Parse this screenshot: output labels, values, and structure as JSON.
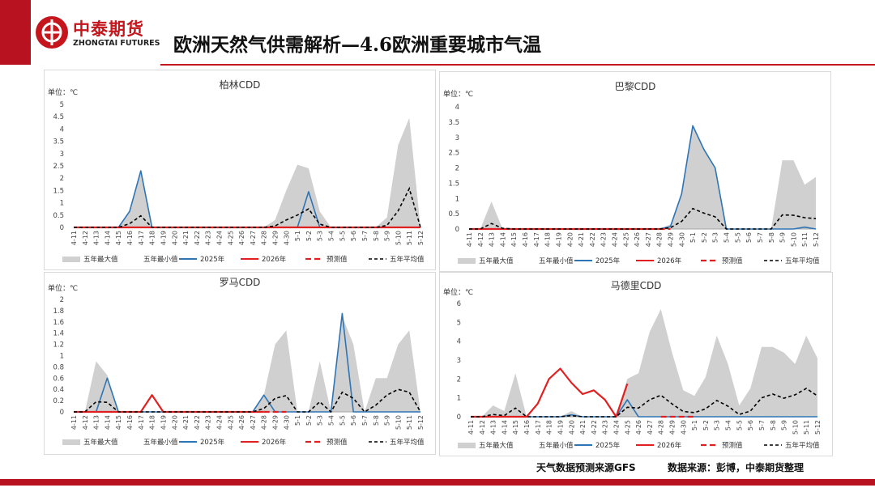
{
  "header": {
    "logo_cn": "中泰期货",
    "logo_en": "ZHONGTAI FUTURES",
    "title": "欧洲天然气供需解析—4.6欧洲重要城市气温"
  },
  "footer": {
    "weather_source": "天气数据预测来源GFS",
    "data_source": "数据来源：彭博，中泰期货整理"
  },
  "colors": {
    "brand_red": "#c4161c",
    "max_fill": "#d0d0d0",
    "y2025": "#2e75b6",
    "y2026": "#e02020",
    "forecast": "#e02020",
    "avg": "#000000"
  },
  "chart_data": [
    {
      "id": "berlin",
      "type": "area",
      "title": "柏林CDD",
      "unit_label": "单位：℃",
      "ylim": [
        0,
        5
      ],
      "yticks": [
        "0",
        "0.5",
        "1",
        "1.5",
        "2",
        "2.5",
        "3",
        "3.5",
        "4",
        "4.5",
        "5"
      ],
      "categories": [
        "4-11",
        "4-12",
        "4-13",
        "4-14",
        "4-15",
        "4-16",
        "4-17",
        "4-18",
        "4-19",
        "4-20",
        "4-21",
        "4-22",
        "4-23",
        "4-24",
        "4-25",
        "4-26",
        "4-27",
        "4-28",
        "4-29",
        "4-30",
        "5-1",
        "5-2",
        "5-3",
        "5-4",
        "5-5",
        "5-6",
        "5-7",
        "5-8",
        "5-9",
        "5-10",
        "5-11",
        "5-12"
      ],
      "legend": [
        "五年最大值",
        "五年最小值",
        "2025年",
        "2026年",
        "预测值",
        "五年平均值"
      ],
      "series": [
        {
          "name": "五年最大值",
          "style": "area",
          "values": [
            0,
            0,
            0,
            0,
            0,
            0.7,
            2.3,
            0,
            0,
            0,
            0,
            0,
            0,
            0,
            0,
            0,
            0,
            0,
            0.3,
            1.5,
            2.55,
            2.4,
            0.65,
            0,
            0,
            0,
            0,
            0,
            0.4,
            3.35,
            4.45,
            0
          ]
        },
        {
          "name": "五年最小值",
          "style": "line",
          "values": [
            0,
            0,
            0,
            0,
            0,
            0,
            0,
            0,
            0,
            0,
            0,
            0,
            0,
            0,
            0,
            0,
            0,
            0,
            0,
            0,
            0,
            0,
            0,
            0,
            0,
            0,
            0,
            0,
            0,
            0,
            0,
            0
          ]
        },
        {
          "name": "2025年",
          "style": "line",
          "values": [
            0,
            0,
            0,
            0,
            0,
            0.65,
            2.3,
            0,
            0,
            0,
            0,
            0,
            0,
            0,
            0,
            0,
            0,
            0,
            0,
            0,
            0,
            1.45,
            0,
            0,
            0,
            0,
            0,
            0,
            0,
            0,
            0,
            0
          ]
        },
        {
          "name": "2026年",
          "style": "line",
          "values": [
            0,
            0,
            0,
            0,
            0,
            0,
            0,
            0,
            0,
            0,
            0,
            0,
            0,
            0,
            0,
            0,
            0,
            0,
            0,
            0,
            0,
            0,
            0,
            0,
            0,
            0,
            0,
            0,
            0,
            0,
            0,
            0
          ]
        },
        {
          "name": "五年平均值",
          "style": "dash",
          "values": [
            0,
            0,
            0,
            0,
            0,
            0.15,
            0.47,
            0,
            0,
            0,
            0,
            0,
            0,
            0,
            0,
            0,
            0,
            0,
            0.06,
            0.3,
            0.5,
            0.75,
            0.13,
            0,
            0,
            0,
            0,
            0,
            0.08,
            0.67,
            1.58,
            0
          ]
        }
      ]
    },
    {
      "id": "paris",
      "type": "area",
      "title": "巴黎CDD",
      "unit_label": "单位：℃",
      "ylim": [
        0,
        4
      ],
      "yticks": [
        "0",
        "0.5",
        "1",
        "1.5",
        "2",
        "2.5",
        "3",
        "3.5",
        "4"
      ],
      "categories": [
        "4-11",
        "4-12",
        "4-13",
        "4-14",
        "4-15",
        "4-16",
        "4-17",
        "4-18",
        "4-19",
        "4-20",
        "4-21",
        "4-22",
        "4-23",
        "4-24",
        "4-25",
        "4-26",
        "4-27",
        "4-28",
        "4-29",
        "4-30",
        "5-1",
        "5-2",
        "5-3",
        "5-4",
        "5-5",
        "5-6",
        "5-7",
        "5-8",
        "5-9",
        "5-10",
        "5-11",
        "5-12"
      ],
      "legend": [
        "五年最大值",
        "五年最小值",
        "2025年",
        "2026年",
        "预测值",
        "五年平均值"
      ],
      "series": [
        {
          "name": "五年最大值",
          "style": "area",
          "values": [
            0,
            0,
            0.9,
            0,
            0,
            0,
            0,
            0,
            0,
            0,
            0,
            0,
            0,
            0,
            0,
            0,
            0,
            0,
            0.15,
            1.2,
            3.35,
            2.6,
            2.0,
            0,
            0,
            0,
            0,
            0,
            2.25,
            2.25,
            1.45,
            1.7
          ]
        },
        {
          "name": "五年最小值",
          "style": "line",
          "values": [
            0,
            0,
            0,
            0,
            0,
            0,
            0,
            0,
            0,
            0,
            0,
            0,
            0,
            0,
            0,
            0,
            0,
            0,
            0,
            0,
            0,
            0,
            0,
            0,
            0,
            0,
            0,
            0,
            0,
            0,
            0,
            0
          ]
        },
        {
          "name": "2025年",
          "style": "line",
          "values": [
            0,
            0,
            0,
            0,
            0,
            0,
            0,
            0,
            0,
            0,
            0,
            0,
            0,
            0,
            0,
            0,
            0,
            0,
            0.08,
            1.15,
            3.38,
            2.6,
            2.0,
            0,
            0,
            0,
            0,
            0,
            0,
            0,
            0.06,
            0
          ]
        },
        {
          "name": "2026年",
          "style": "line",
          "values": [
            0,
            0,
            0,
            0,
            0,
            0,
            0,
            0,
            0,
            0,
            0,
            0,
            0,
            0,
            0,
            0,
            0,
            0,
            null,
            null,
            null,
            null,
            null,
            null,
            null,
            null,
            null,
            null,
            null,
            null,
            null,
            null
          ]
        },
        {
          "name": "预测值",
          "style": "forecast",
          "values": [
            null,
            null,
            null,
            null,
            null,
            null,
            null,
            null,
            null,
            null,
            null,
            null,
            null,
            null,
            null,
            null,
            null,
            0,
            0,
            null,
            null,
            null,
            null,
            null,
            null,
            null,
            null,
            null,
            null,
            null,
            null,
            null
          ]
        },
        {
          "name": "五年平均值",
          "style": "dash",
          "values": [
            0,
            0,
            0.18,
            0.02,
            0,
            0,
            0,
            0,
            0,
            0,
            0,
            0,
            0,
            0,
            0,
            0,
            0,
            0,
            0.04,
            0.25,
            0.67,
            0.52,
            0.4,
            0,
            0,
            0,
            0,
            0,
            0.46,
            0.45,
            0.37,
            0.34
          ]
        }
      ]
    },
    {
      "id": "rome",
      "type": "area",
      "title": "罗马CDD",
      "unit_label": "单位：℃",
      "ylim": [
        0,
        2
      ],
      "yticks": [
        "0",
        "0.2",
        "0.4",
        "0.6",
        "0.8",
        "1",
        "1.2",
        "1.4",
        "1.6",
        "1.8",
        "2"
      ],
      "categories": [
        "4-11",
        "4-12",
        "4-13",
        "4-14",
        "4-15",
        "4-16",
        "4-17",
        "4-18",
        "4-19",
        "4-20",
        "4-21",
        "4-22",
        "4-23",
        "4-24",
        "4-25",
        "4-26",
        "4-27",
        "4-28",
        "4-29",
        "4-30",
        "5-1",
        "5-2",
        "5-3",
        "5-4",
        "5-5",
        "5-6",
        "5-7",
        "5-8",
        "5-9",
        "5-10",
        "5-11",
        "5-12"
      ],
      "legend": [
        "五年最大值",
        "五年最小值",
        "2025年",
        "2026年",
        "预测值",
        "五年平均值"
      ],
      "series": [
        {
          "name": "五年最大值",
          "style": "area",
          "values": [
            0,
            0,
            0.9,
            0.65,
            0,
            0,
            0,
            0,
            0,
            0,
            0,
            0,
            0,
            0,
            0,
            0,
            0,
            0.3,
            1.2,
            1.45,
            0,
            0,
            0.9,
            0,
            1.7,
            1.2,
            0,
            0.6,
            0.6,
            1.2,
            1.45,
            0
          ]
        },
        {
          "name": "五年最小值",
          "style": "line",
          "values": [
            0,
            0,
            0,
            0,
            0,
            0,
            0,
            0,
            0,
            0,
            0,
            0,
            0,
            0,
            0,
            0,
            0,
            0,
            0,
            0,
            0,
            0,
            0,
            0,
            0,
            0,
            0,
            0,
            0,
            0,
            0,
            0
          ]
        },
        {
          "name": "2025年",
          "style": "line",
          "values": [
            0,
            0,
            0,
            0.6,
            0,
            0,
            0,
            0,
            0,
            0,
            0,
            0,
            0,
            0,
            0,
            0,
            0,
            0.3,
            0,
            0,
            0,
            0,
            0,
            0,
            1.75,
            0,
            0,
            0,
            0,
            0,
            0,
            0
          ]
        },
        {
          "name": "2026年",
          "style": "line",
          "values": [
            0,
            0,
            0,
            0,
            0,
            0,
            0,
            0.3,
            0,
            0,
            0,
            0,
            0,
            0,
            0,
            0,
            0,
            0,
            null,
            null,
            null,
            null,
            null,
            null,
            null,
            null,
            null,
            null,
            null,
            null,
            null,
            null
          ]
        },
        {
          "name": "预测值",
          "style": "forecast",
          "values": [
            null,
            null,
            null,
            null,
            null,
            null,
            null,
            null,
            null,
            null,
            null,
            null,
            null,
            null,
            null,
            null,
            null,
            0,
            0,
            0,
            null,
            null,
            null,
            null,
            null,
            null,
            null,
            null,
            null,
            null,
            null,
            null
          ]
        },
        {
          "name": "五年平均值",
          "style": "dash",
          "values": [
            0,
            0,
            0.18,
            0.17,
            0,
            0,
            0,
            0,
            0,
            0,
            0,
            0,
            0,
            0,
            0,
            0,
            0,
            0.06,
            0.24,
            0.29,
            0,
            0,
            0.18,
            0,
            0.35,
            0.24,
            0,
            0.12,
            0.3,
            0.4,
            0.35,
            0
          ]
        }
      ]
    },
    {
      "id": "madrid",
      "type": "area",
      "title": "马德里CDD",
      "unit_label": "单位：℃",
      "ylim": [
        0,
        6
      ],
      "yticks": [
        "0",
        "1",
        "2",
        "3",
        "4",
        "5",
        "6"
      ],
      "categories": [
        "4-11",
        "4-12",
        "4-13",
        "4-14",
        "4-15",
        "4-16",
        "4-17",
        "4-18",
        "4-19",
        "4-20",
        "4-21",
        "4-22",
        "4-23",
        "4-24",
        "4-25",
        "4-26",
        "4-27",
        "4-28",
        "4-29",
        "4-30",
        "5-1",
        "5-2",
        "5-3",
        "5-4",
        "5-5",
        "5-6",
        "5-7",
        "5-8",
        "5-9",
        "5-10",
        "5-11",
        "5-12"
      ],
      "legend": [
        "五年最大值",
        "五年最小值",
        "2025年",
        "2026年",
        "预测值",
        "五年平均值"
      ],
      "series": [
        {
          "name": "五年最大值",
          "style": "area",
          "values": [
            0,
            0,
            0.6,
            0.3,
            2.3,
            0,
            0,
            0,
            0,
            0.3,
            0,
            0,
            0,
            0,
            2.0,
            2.3,
            4.5,
            5.7,
            3.4,
            1.4,
            1.1,
            2.1,
            4.3,
            2.8,
            0.6,
            1.5,
            3.7,
            3.7,
            3.4,
            2.8,
            4.3,
            3.1
          ]
        },
        {
          "name": "五年最小值",
          "style": "line",
          "values": [
            0,
            0,
            0,
            0,
            0,
            0,
            0,
            0,
            0,
            0,
            0,
            0,
            0,
            0,
            0,
            0,
            0,
            0,
            0,
            0,
            0,
            0,
            0,
            0,
            0,
            0,
            0,
            0,
            0,
            0,
            0,
            0
          ]
        },
        {
          "name": "2025年",
          "style": "line",
          "values": [
            0,
            0,
            0,
            0,
            0,
            0,
            0,
            0,
            0,
            0.1,
            0,
            0,
            0,
            0,
            0.9,
            0,
            0,
            0,
            0,
            0,
            0,
            0,
            0,
            0,
            0,
            0,
            0,
            0,
            0,
            0,
            0,
            0
          ]
        },
        {
          "name": "2026年",
          "style": "line",
          "values": [
            0,
            0,
            0,
            0,
            0,
            0,
            0.7,
            2.0,
            2.55,
            1.8,
            1.2,
            1.4,
            0.9,
            0,
            1.75,
            null,
            null,
            null,
            null,
            null,
            null,
            null,
            null,
            null,
            null,
            null,
            null,
            null,
            null,
            null,
            null,
            null
          ]
        },
        {
          "name": "预测值",
          "style": "forecast",
          "values": [
            null,
            null,
            null,
            null,
            null,
            null,
            null,
            null,
            null,
            null,
            null,
            null,
            null,
            null,
            null,
            null,
            null,
            0,
            0,
            0,
            0,
            null,
            null,
            null,
            null,
            null,
            null,
            null,
            null,
            null,
            null,
            null
          ]
        },
        {
          "name": "五年平均值",
          "style": "dash",
          "values": [
            0,
            0,
            0.12,
            0.06,
            0.46,
            0,
            0,
            0,
            0,
            0.06,
            0,
            0,
            0,
            0,
            0.5,
            0.46,
            0.9,
            1.14,
            0.68,
            0.28,
            0.22,
            0.42,
            0.86,
            0.56,
            0.12,
            0.3,
            1.0,
            1.2,
            0.98,
            1.16,
            1.5,
            1.1
          ]
        }
      ]
    }
  ]
}
